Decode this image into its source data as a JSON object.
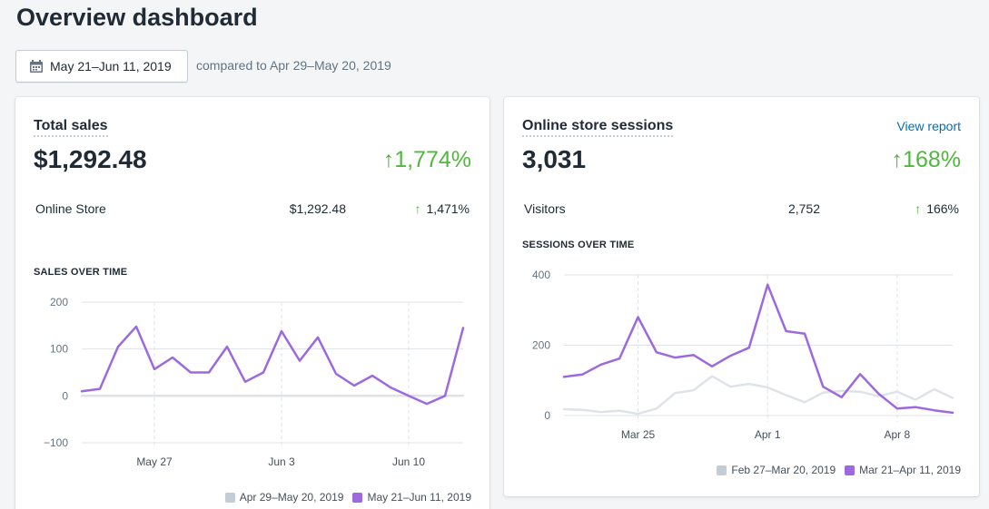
{
  "page": {
    "title": "Overview dashboard"
  },
  "date_range": {
    "label": "May 21–Jun 11, 2019",
    "compared_text": "compared to Apr 29–May 20, 2019"
  },
  "colors": {
    "accent": "#9c6ade",
    "previous": "#dfe3e8",
    "positive": "#50b83c",
    "link": "#006fbb"
  },
  "sales_card": {
    "title": "Total sales",
    "value": "$1,292.48",
    "change": "↑1,774%",
    "row": {
      "label": "Online Store",
      "value": "$1,292.48",
      "change_arrow": "↑",
      "change": "1,471%"
    },
    "section_title": "SALES OVER TIME"
  },
  "sessions_card": {
    "title": "Online store sessions",
    "view_report": "View report",
    "value": "3,031",
    "change": "↑168%",
    "row": {
      "label": "Visitors",
      "value": "2,752",
      "change_arrow": "↑",
      "change": "166%"
    },
    "section_title": "SESSIONS OVER TIME"
  },
  "chart_data": [
    {
      "type": "line",
      "title": "SALES OVER TIME",
      "x_ticks": [
        "May 27",
        "Jun 3",
        "Jun 10"
      ],
      "y_ticks": [
        200,
        100,
        0,
        -100
      ],
      "y_tick_labels": [
        "200",
        "100",
        "0",
        "−100"
      ],
      "ylim": [
        -100,
        200
      ],
      "grid": true,
      "legend_position": "bottom-right",
      "series": [
        {
          "name": "Apr 29–May 20, 2019",
          "color": "#dfe3e8",
          "values": [
            0,
            0,
            0,
            0,
            0,
            0,
            0,
            0,
            0,
            0,
            0,
            0,
            0,
            0,
            0,
            0,
            0,
            0,
            0,
            0,
            0,
            0
          ]
        },
        {
          "name": "May 21–Jun 11, 2019",
          "color": "#9c6ade",
          "values": [
            10,
            15,
            105,
            148,
            57,
            82,
            50,
            50,
            105,
            30,
            50,
            138,
            75,
            125,
            47,
            22,
            43,
            18,
            0,
            -17,
            0,
            145
          ]
        }
      ]
    },
    {
      "type": "line",
      "title": "SESSIONS OVER TIME",
      "x_ticks": [
        "Mar 25",
        "Apr 1",
        "Apr 8"
      ],
      "y_ticks": [
        400,
        200,
        0
      ],
      "y_tick_labels": [
        "400",
        "200",
        "0"
      ],
      "ylim": [
        0,
        400
      ],
      "grid": true,
      "legend_position": "bottom-right",
      "series": [
        {
          "name": "Feb 27–Mar 20, 2019",
          "color": "#dfe3e8",
          "values": [
            18,
            16,
            10,
            14,
            5,
            20,
            64,
            72,
            112,
            82,
            90,
            80,
            58,
            38,
            65,
            70,
            68,
            55,
            68,
            45,
            75,
            50
          ]
        },
        {
          "name": "Mar 21–Apr 11, 2019",
          "color": "#9c6ade",
          "values": [
            110,
            117,
            145,
            162,
            280,
            180,
            165,
            172,
            140,
            170,
            193,
            372,
            240,
            233,
            82,
            52,
            118,
            62,
            20,
            24,
            15,
            8
          ]
        }
      ]
    }
  ]
}
